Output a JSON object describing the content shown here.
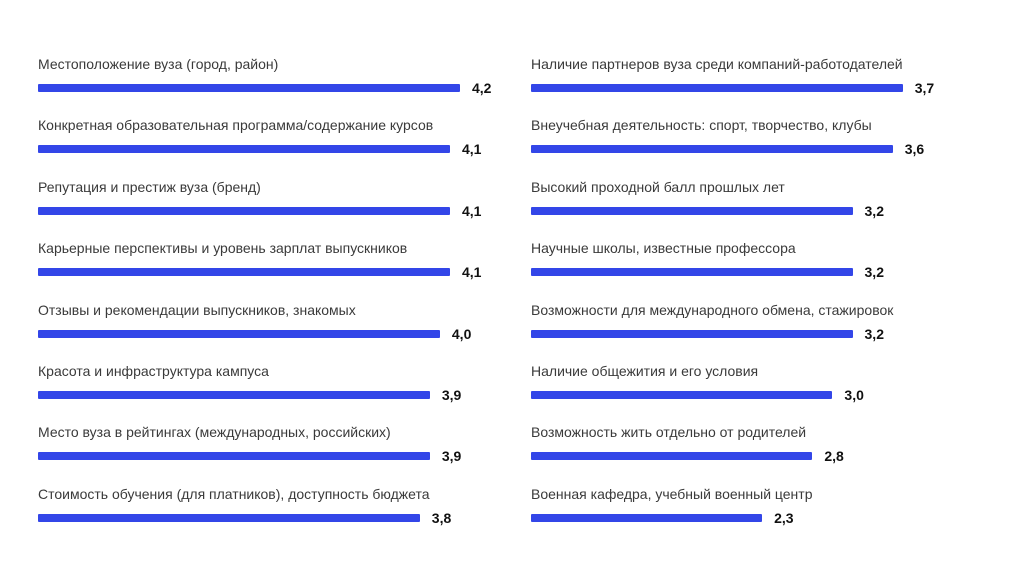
{
  "colors": {
    "bar": "#3346e8",
    "label": "#3a3a3a",
    "value": "#111111",
    "background": "#ffffff"
  },
  "chart_data": {
    "type": "bar",
    "orientation": "horizontal",
    "title": "",
    "xlabel": "",
    "ylabel": "",
    "xlim": [
      0,
      4.2
    ],
    "grid": false,
    "legend": "none",
    "layout_columns": 2,
    "decimal_separator": ",",
    "categories": [
      "Местоположение вуза (город, район)",
      "Конкретная образовательная программа/содержание курсов",
      "Репутация и престиж вуза (бренд)",
      "Карьерные перспективы и уровень зарплат выпускников",
      "Отзывы и рекомендации выпускников, знакомых",
      "Красота и инфраструктура кампуса",
      "Место вуза в рейтингах (международных, российских)",
      "Стоимость обучения (для платников), доступность бюджета",
      "Наличие партнеров вуза среди компаний-работодателей",
      "Внеучебная деятельность: спорт, творчество, клубы",
      "Высокий проходной балл прошлых лет",
      "Научные школы, известные профессора",
      "Возможности для международного обмена, стажировок",
      "Наличие общежития и его условия",
      "Возможность жить отдельно от родителей",
      "Военная кафедра, учебный военный центр"
    ],
    "values": [
      4.2,
      4.1,
      4.1,
      4.1,
      4.0,
      3.9,
      3.9,
      3.8,
      3.7,
      3.6,
      3.2,
      3.2,
      3.2,
      3.0,
      2.8,
      2.3
    ],
    "value_labels": [
      "4,2",
      "4,1",
      "4,1",
      "4,1",
      "4,0",
      "3,9",
      "3,9",
      "3,8",
      "3,7",
      "3,6",
      "3,2",
      "3,2",
      "3,2",
      "3,0",
      "2,8",
      "2,3"
    ]
  }
}
